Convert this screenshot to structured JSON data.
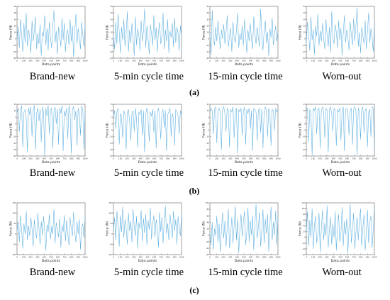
{
  "figure": {
    "row_labels": [
      "(a)",
      "(b)",
      "(c)"
    ],
    "captions": [
      "Brand-new",
      "5-min cycle time",
      "15-min cycle time",
      "Worn-out"
    ]
  },
  "chart_data": [
    {
      "type": "line",
      "row": "(a)",
      "subtitle": "Brand-new",
      "xlabel": "Data points",
      "ylabel": "Force (N)",
      "xlim": [
        0,
        1000
      ],
      "ylim": [
        -30,
        50
      ],
      "yticks": [
        -30,
        -20,
        -10,
        0,
        10,
        20,
        30,
        40,
        50
      ],
      "xticks": [
        0,
        100,
        200,
        300,
        400,
        500,
        600,
        700,
        800,
        900,
        1000
      ],
      "grid": false,
      "series": [
        {
          "values": [
            -2,
            18,
            -14,
            30,
            6,
            -20,
            24,
            -6,
            40,
            -12,
            14,
            2,
            -22,
            28,
            -4,
            12,
            34,
            -16,
            8,
            -8,
            22,
            -26,
            10,
            4,
            36,
            -10,
            16,
            -18,
            26,
            0,
            -14,
            20,
            44,
            -6,
            12,
            -24,
            18,
            6,
            -12,
            32,
            -2,
            24,
            -20,
            8,
            14,
            -10,
            30,
            -4,
            20,
            -28,
            10,
            38,
            -8,
            16,
            2,
            -16,
            26,
            6,
            -12,
            22
          ]
        }
      ]
    },
    {
      "type": "line",
      "row": "(a)",
      "subtitle": "5-min cycle time",
      "xlabel": "Data points",
      "ylabel": "Force (N)",
      "xlim": [
        0,
        1000
      ],
      "ylim": [
        -30,
        50
      ],
      "yticks": [
        -30,
        -20,
        -10,
        0,
        10,
        20,
        30,
        40,
        50
      ],
      "xticks": [
        0,
        100,
        200,
        300,
        400,
        500,
        600,
        700,
        800,
        900,
        1000
      ],
      "grid": false,
      "series": [
        {
          "values": [
            4,
            -16,
            26,
            -8,
            38,
            10,
            -22,
            18,
            -2,
            30,
            -12,
            8,
            42,
            -20,
            14,
            -6,
            24,
            2,
            -26,
            34,
            -10,
            16,
            6,
            -18,
            28,
            -4,
            12,
            46,
            -14,
            20,
            0,
            -24,
            22,
            8,
            -10,
            36,
            -2,
            18,
            -20,
            10,
            26,
            -8,
            4,
            40,
            -16,
            14,
            -4,
            30,
            -22,
            12,
            2,
            24,
            -12,
            32,
            -6,
            18,
            8,
            -18,
            20,
            4
          ]
        }
      ]
    },
    {
      "type": "line",
      "row": "(a)",
      "subtitle": "15-min cycle time",
      "xlabel": "Data points",
      "ylabel": "Force (N)",
      "xlim": [
        0,
        1000
      ],
      "ylim": [
        -30,
        50
      ],
      "yticks": [
        -30,
        -20,
        -10,
        0,
        10,
        20,
        30,
        40,
        50
      ],
      "xticks": [
        0,
        100,
        200,
        300,
        400,
        500,
        600,
        700,
        800,
        900,
        1000
      ],
      "grid": false,
      "series": [
        {
          "values": [
            8,
            -24,
            44,
            2,
            -10,
            18,
            -4,
            28,
            6,
            -16,
            14,
            0,
            22,
            -8,
            10,
            36,
            -12,
            4,
            16,
            -20,
            26,
            2,
            -6,
            12,
            40,
            -14,
            8,
            -2,
            20,
            -10,
            30,
            6,
            -22,
            14,
            -4,
            24,
            0,
            -16,
            34,
            8,
            -8,
            18,
            2,
            -12,
            46,
            4,
            -18,
            12,
            28,
            -6,
            10,
            -26,
            16,
            2,
            32,
            -10,
            6,
            20,
            -4,
            12
          ]
        }
      ]
    },
    {
      "type": "line",
      "row": "(a)",
      "subtitle": "Worn-out",
      "xlabel": "Data points",
      "ylabel": "Force (N)",
      "xlim": [
        0,
        1000
      ],
      "ylim": [
        -30,
        50
      ],
      "yticks": [
        -30,
        -20,
        -10,
        0,
        10,
        20,
        30,
        40,
        50
      ],
      "xticks": [
        0,
        100,
        200,
        300,
        400,
        500,
        600,
        700,
        800,
        900,
        1000
      ],
      "grid": false,
      "series": [
        {
          "values": [
            -6,
            26,
            8,
            -18,
            34,
            -2,
            14,
            -24,
            20,
            4,
            38,
            -10,
            12,
            -4,
            24,
            0,
            -16,
            30,
            6,
            -12,
            18,
            -20,
            42,
            2,
            -8,
            22,
            10,
            -14,
            28,
            -2,
            16,
            -26,
            8,
            36,
            -6,
            14,
            2,
            -18,
            26,
            6,
            -10,
            32,
            -4,
            20,
            48,
            -12,
            10,
            -22,
            18,
            4,
            -8,
            28,
            -16,
            12,
            40,
            -6,
            16,
            2,
            -20,
            22
          ]
        }
      ]
    },
    {
      "type": "line",
      "row": "(b)",
      "subtitle": "Brand-new",
      "xlabel": "Data points",
      "ylabel": "Force (N)",
      "xlim": [
        0,
        1000
      ],
      "ylim": [
        -25,
        15
      ],
      "yticks": [
        -25,
        -20,
        -15,
        -10,
        -5,
        0,
        5,
        10,
        15
      ],
      "xticks": [
        0,
        100,
        200,
        300,
        400,
        500,
        600,
        700,
        800,
        900,
        1000
      ],
      "grid": false,
      "series": [
        {
          "values": [
            8,
            12,
            -6,
            10,
            14,
            -18,
            9,
            11,
            4,
            -22,
            12,
            7,
            13,
            -10,
            10,
            14,
            -20,
            8,
            12,
            2,
            11,
            -14,
            13,
            9,
            -24,
            12,
            6,
            14,
            -8,
            10,
            12,
            -19,
            9,
            13,
            0,
            11,
            -16,
            12,
            8,
            14,
            -21,
            10,
            6,
            12,
            -12,
            14,
            9,
            -23,
            11,
            13,
            3,
            10,
            -17,
            12,
            8,
            -9,
            14,
            11,
            -20,
            10
          ]
        }
      ]
    },
    {
      "type": "line",
      "row": "(b)",
      "subtitle": "5-min cycle time",
      "xlabel": "Data points",
      "ylabel": "Force (N)",
      "xlim": [
        0,
        1000
      ],
      "ylim": [
        -25,
        15
      ],
      "yticks": [
        -25,
        -20,
        -15,
        -10,
        -5,
        0,
        5,
        10,
        15
      ],
      "xticks": [
        0,
        100,
        200,
        300,
        400,
        500,
        600,
        700,
        800,
        900,
        1000
      ],
      "grid": false,
      "series": [
        {
          "values": [
            6,
            10,
            -4,
            9,
            12,
            -16,
            8,
            5,
            -11,
            10,
            7,
            -20,
            9,
            11,
            2,
            -13,
            8,
            10,
            -6,
            12,
            4,
            -18,
            9,
            7,
            11,
            -9,
            10,
            -22,
            8,
            12,
            3,
            -14,
            9,
            6,
            11,
            -7,
            10,
            -19,
            8,
            12,
            5,
            -12,
            9,
            11,
            -3,
            10,
            -21,
            7,
            9,
            12,
            -10,
            8,
            4,
            -17,
            11,
            9,
            6,
            -8,
            10,
            7
          ]
        }
      ]
    },
    {
      "type": "line",
      "row": "(b)",
      "subtitle": "15-min cycle time",
      "xlabel": "Data points",
      "ylabel": "Force (N)",
      "xlim": [
        0,
        1000
      ],
      "ylim": [
        -25,
        15
      ],
      "yticks": [
        -25,
        -20,
        -15,
        -10,
        -5,
        0,
        5,
        10,
        15
      ],
      "xticks": [
        0,
        100,
        200,
        300,
        400,
        500,
        600,
        700,
        800,
        900,
        1000
      ],
      "grid": false,
      "series": [
        {
          "values": [
            9,
            12,
            10,
            -8,
            11,
            13,
            -15,
            10,
            12,
            9,
            -20,
            11,
            13,
            8,
            -6,
            12,
            10,
            -18,
            11,
            9,
            13,
            -11,
            10,
            12,
            -23,
            11,
            9,
            12,
            -9,
            10,
            13,
            -16,
            11,
            8,
            12,
            -4,
            10,
            -21,
            12,
            11,
            9,
            -13,
            10,
            12,
            -7,
            11,
            -19,
            9,
            13,
            10,
            -10,
            12,
            8,
            -17,
            11,
            10,
            -5,
            12,
            9,
            11
          ]
        }
      ]
    },
    {
      "type": "line",
      "row": "(b)",
      "subtitle": "Worn-out",
      "xlabel": "Data points",
      "ylabel": "Force (N)",
      "xlim": [
        0,
        1000
      ],
      "ylim": [
        -25,
        15
      ],
      "yticks": [
        -25,
        -20,
        -15,
        -10,
        -5,
        0,
        5,
        10,
        15
      ],
      "xticks": [
        0,
        100,
        200,
        300,
        400,
        500,
        600,
        700,
        800,
        900,
        1000
      ],
      "grid": false,
      "series": [
        {
          "values": [
            10,
            12,
            -14,
            11,
            9,
            -24,
            12,
            10,
            13,
            -8,
            11,
            12,
            -19,
            10,
            13,
            9,
            -11,
            12,
            10,
            -22,
            11,
            13,
            8,
            -6,
            12,
            10,
            -17,
            11,
            9,
            12,
            -13,
            10,
            13,
            -21,
            11,
            12,
            9,
            -9,
            10,
            12,
            -16,
            11,
            13,
            10,
            -24,
            12,
            9,
            -12,
            11,
            13,
            -7,
            10,
            12,
            -18,
            9,
            11,
            -10,
            13,
            12,
            -20
          ]
        }
      ]
    },
    {
      "type": "line",
      "row": "(c)",
      "subtitle": "Brand-new",
      "xlabel": "Data points",
      "ylabel": "Force (N)",
      "xlim": [
        0,
        1000
      ],
      "ylim": [
        -100,
        150
      ],
      "yticks": [
        -100,
        -50,
        0,
        50,
        100,
        150
      ],
      "xticks": [
        0,
        100,
        200,
        300,
        400,
        500,
        600,
        700,
        800,
        900,
        1000
      ],
      "grid": false,
      "series": [
        {
          "values": [
            10,
            60,
            -40,
            90,
            20,
            -70,
            50,
            0,
            110,
            -30,
            40,
            -10,
            80,
            25,
            -60,
            70,
            5,
            -20,
            100,
            30,
            -50,
            60,
            -5,
            85,
            15,
            -80,
            45,
            10,
            95,
            -25,
            35,
            0,
            120,
            -45,
            55,
            20,
            -15,
            75,
            -65,
            40,
            10,
            90,
            -35,
            65,
            5,
            -55,
            80,
            25,
            -10,
            105,
            15,
            -40,
            60,
            0,
            70,
            -75,
            30,
            50,
            -20,
            85
          ]
        }
      ]
    },
    {
      "type": "line",
      "row": "(c)",
      "subtitle": "5-min cycle time",
      "xlabel": "Data points",
      "ylabel": "Force (N)",
      "xlim": [
        0,
        1000
      ],
      "ylim": [
        -100,
        150
      ],
      "yticks": [
        -100,
        -50,
        0,
        50,
        100,
        150
      ],
      "xticks": [
        0,
        100,
        200,
        300,
        400,
        500,
        600,
        700,
        800,
        900,
        1000
      ],
      "grid": false,
      "series": [
        {
          "values": [
            20,
            80,
            -30,
            110,
            40,
            -60,
            90,
            10,
            130,
            -20,
            70,
            30,
            -50,
            100,
            15,
            60,
            -40,
            120,
            35,
            -10,
            85,
            -70,
            55,
            25,
            115,
            -35,
            75,
            5,
            95,
            -55,
            65,
            20,
            125,
            -25,
            45,
            90,
            -15,
            70,
            30,
            -65,
            105,
            10,
            80,
            -45,
            60,
            135,
            0,
            50,
            -30,
            95,
            40,
            -20,
            110,
            15,
            70,
            -50,
            85,
            25,
            -10,
            100
          ]
        }
      ]
    },
    {
      "type": "line",
      "row": "(c)",
      "subtitle": "15-min cycle time",
      "xlabel": "Data points",
      "ylabel": "Force (N)",
      "xlim": [
        0,
        1000
      ],
      "ylim": [
        -60,
        100
      ],
      "yticks": [
        -60,
        -40,
        -20,
        0,
        20,
        40,
        60,
        80,
        100
      ],
      "xticks": [
        0,
        100,
        200,
        300,
        400,
        500,
        600,
        700,
        800,
        900,
        1000
      ],
      "grid": false,
      "series": [
        {
          "values": [
            10,
            -30,
            40,
            -45,
            20,
            0,
            60,
            -20,
            35,
            -50,
            15,
            70,
            -10,
            45,
            -35,
            25,
            80,
            -40,
            5,
            55,
            -25,
            30,
            90,
            -15,
            50,
            -55,
            20,
            65,
            -5,
            40,
            75,
            -30,
            10,
            85,
            -20,
            45,
            0,
            60,
            -45,
            35,
            95,
            -10,
            25,
            70,
            -35,
            15,
            80,
            -25,
            50,
            5,
            65,
            -50,
            30,
            88,
            -15,
            40,
            0,
            75,
            -30,
            55
          ]
        }
      ]
    },
    {
      "type": "line",
      "row": "(c)",
      "subtitle": "Worn-out",
      "xlabel": "Data points",
      "ylabel": "Force (N)",
      "xlim": [
        0,
        1000
      ],
      "ylim": [
        -60,
        120
      ],
      "yticks": [
        -60,
        -40,
        -20,
        0,
        20,
        40,
        60,
        80,
        100,
        120
      ],
      "xticks": [
        0,
        100,
        200,
        300,
        400,
        500,
        600,
        700,
        800,
        900,
        1000
      ],
      "grid": false,
      "series": [
        {
          "values": [
            20,
            90,
            -30,
            60,
            0,
            100,
            -40,
            40,
            75,
            -20,
            10,
            85,
            -50,
            30,
            95,
            -10,
            50,
            5,
            110,
            -35,
            25,
            70,
            -25,
            45,
            0,
            90,
            -45,
            35,
            80,
            -15,
            15,
            105,
            -30,
            55,
            10,
            65,
            -55,
            40,
            115,
            -20,
            30,
            85,
            -40,
            20,
            70,
            -10,
            60,
            100,
            -30,
            35,
            80,
            -45,
            15,
            95,
            -20,
            50,
            75,
            -35,
            25,
            110
          ]
        }
      ]
    }
  ]
}
